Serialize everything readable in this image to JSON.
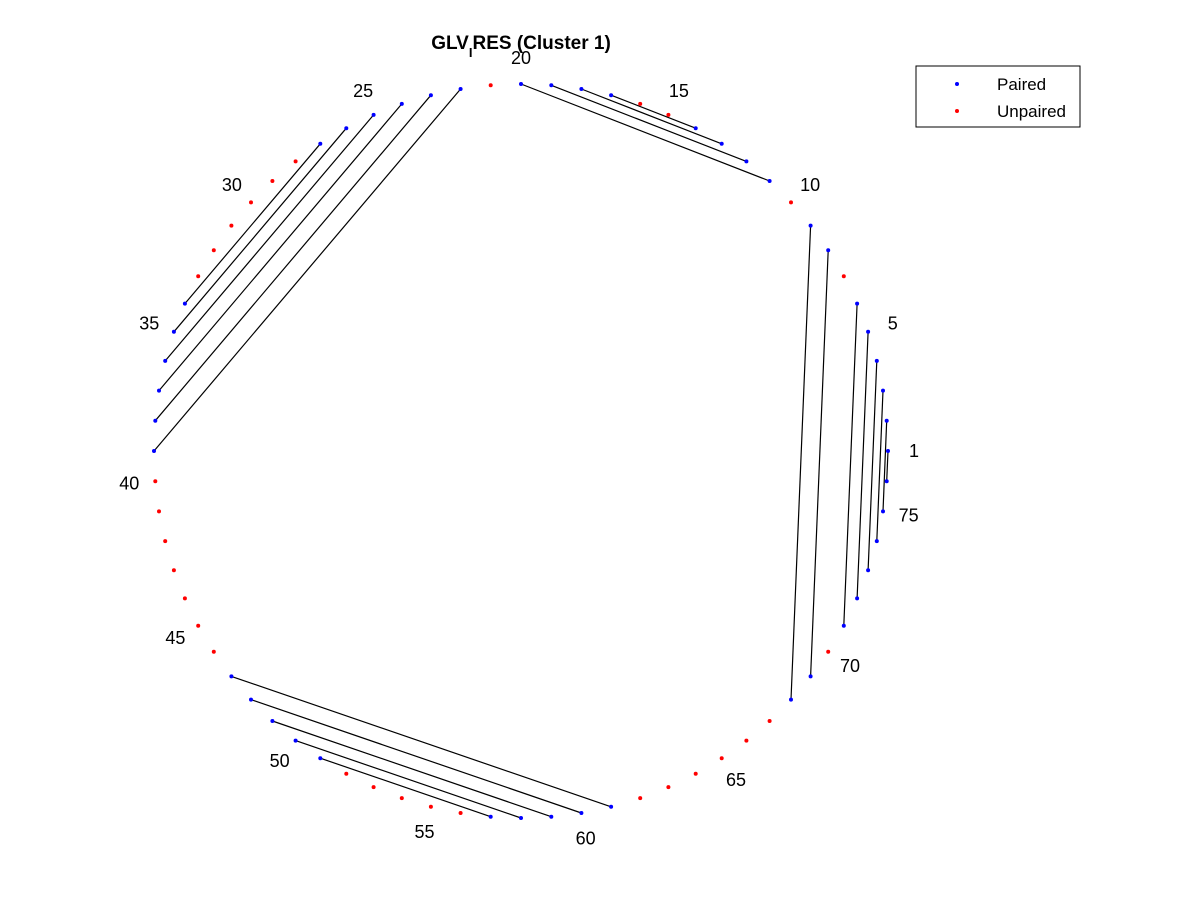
{
  "chart_data": {
    "type": "arc-diagram-circular",
    "title": {
      "prefix": "GLV",
      "subscript": "I",
      "suffix": "RES (Cluster 1)"
    },
    "n_positions": 76,
    "position_labels": [
      1,
      5,
      10,
      15,
      20,
      25,
      30,
      35,
      40,
      45,
      50,
      55,
      60,
      65,
      70,
      75
    ],
    "pairs": [
      [
        1,
        76
      ],
      [
        2,
        75
      ],
      [
        3,
        74
      ],
      [
        4,
        73
      ],
      [
        5,
        72
      ],
      [
        6,
        71
      ],
      [
        8,
        69
      ],
      [
        9,
        68
      ],
      [
        11,
        20
      ],
      [
        12,
        19
      ],
      [
        13,
        18
      ],
      [
        14,
        17
      ],
      [
        22,
        39
      ],
      [
        23,
        38
      ],
      [
        24,
        37
      ],
      [
        25,
        36
      ],
      [
        26,
        35
      ],
      [
        27,
        34
      ],
      [
        47,
        61
      ],
      [
        48,
        60
      ],
      [
        49,
        59
      ],
      [
        50,
        58
      ],
      [
        51,
        57
      ]
    ],
    "legend": {
      "location": "top-right",
      "entries": [
        {
          "name": "Paired",
          "color": "#0000ff"
        },
        {
          "name": "Unpaired",
          "color": "#ff0000"
        }
      ]
    },
    "colors": {
      "paired": "#0000ff",
      "unpaired": "#ff0000",
      "line": "#000000"
    },
    "axes_visible": false
  }
}
